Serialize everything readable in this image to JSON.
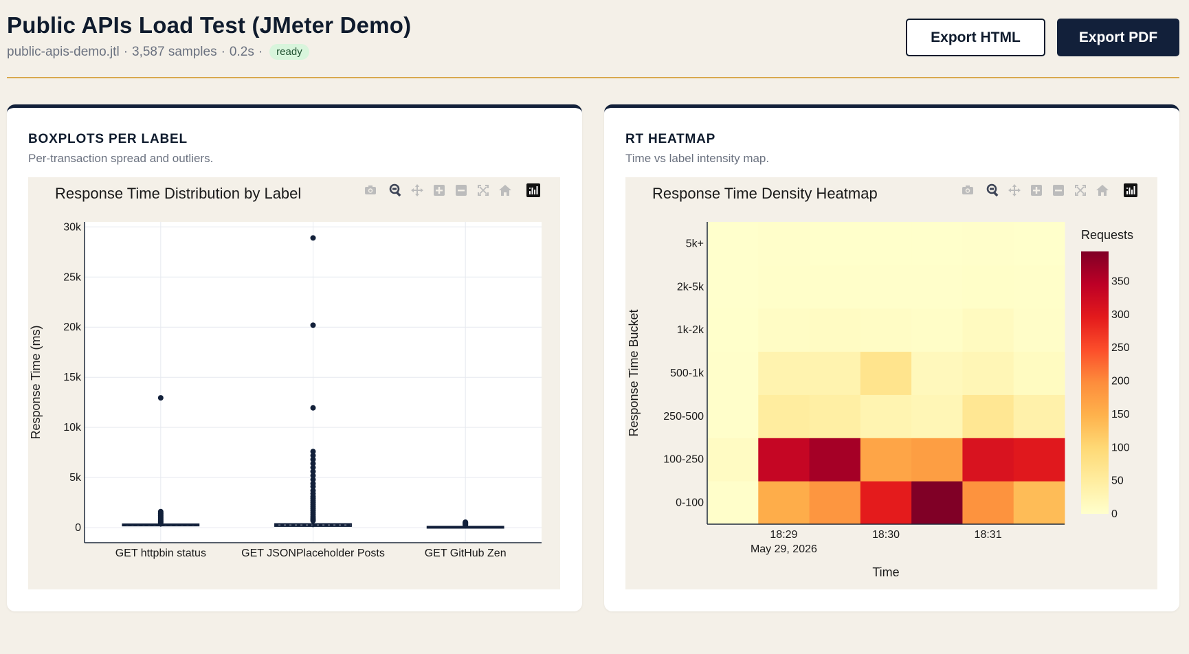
{
  "header": {
    "title": "Public APIs Load Test (JMeter Demo)",
    "file": "public-apis-demo.jtl",
    "samples": "3,587 samples",
    "duration": "0.2s",
    "separator": "·",
    "status": "ready",
    "export_html_label": "Export HTML",
    "export_pdf_label": "Export PDF"
  },
  "colors": {
    "accent": "#d9a94e",
    "navy": "#12203a",
    "status_bg": "#d8f5dc",
    "status_text": "#1f5130",
    "plot_bg": "#f4f0e8"
  },
  "modebar_icons": [
    "camera-icon",
    "zoom-icon",
    "pan-icon",
    "zoom-in-icon",
    "zoom-out-icon",
    "autoscale-icon",
    "reset-axes-icon",
    "plotly-logo-icon"
  ],
  "boxplot_card": {
    "title": "BOXPLOTS PER LABEL",
    "subtitle": "Per-transaction spread and outliers."
  },
  "heatmap_card": {
    "title": "RT HEATMAP",
    "subtitle": "Time vs label intensity map."
  },
  "chart_data": [
    {
      "type": "box",
      "title": "Response Time Distribution by Label",
      "xlabel": "",
      "ylabel": "Response Time (ms)",
      "ylim": [
        -1500,
        30500
      ],
      "yticks": [
        0,
        5000,
        10000,
        15000,
        20000,
        25000,
        30000
      ],
      "ytick_labels": [
        "0",
        "5k",
        "10k",
        "15k",
        "20k",
        "25k",
        "30k"
      ],
      "grid": true,
      "categories": [
        "GET httpbin status",
        "GET JSONPlaceholder Posts",
        "GET GitHub Zen"
      ],
      "boxes": [
        {
          "q1": 200,
          "median": 280,
          "q3": 350,
          "whisker_low": 100,
          "whisker_high": 400,
          "outliers": [
            12950,
            1600,
            1500,
            1400,
            1300,
            1200,
            1100,
            1000,
            900,
            800,
            700,
            600,
            500
          ]
        },
        {
          "q1": 150,
          "median": 250,
          "q3": 380,
          "whisker_low": 50,
          "whisker_high": 600,
          "outliers": [
            28900,
            20200,
            11950,
            7600,
            7200,
            6800,
            6400,
            6000,
            5600,
            5200,
            4800,
            4400,
            4100,
            3700,
            3400,
            3100,
            2900,
            2700,
            2500,
            2300,
            2100,
            1900,
            1700,
            1500,
            1300,
            1100,
            950,
            800,
            700
          ]
        },
        {
          "q1": 50,
          "median": 80,
          "q3": 110,
          "whisker_low": 20,
          "whisker_high": 140,
          "outliers": [
            550,
            500,
            450,
            400,
            350,
            300,
            250
          ]
        }
      ]
    },
    {
      "type": "heatmap",
      "title": "Response Time Density Heatmap",
      "xlabel": "Time",
      "ylabel": "Response Time Bucket",
      "x_tick_labels": [
        "18:29",
        "18:30",
        "18:31"
      ],
      "x_date_label": "May 29, 2026",
      "y_categories": [
        "0-100",
        "100-250",
        "250-500",
        "500-1k",
        "1k-2k",
        "2k-5k",
        "5k+"
      ],
      "colorbar_title": "Requests",
      "colorbar_ticks": [
        0,
        50,
        100,
        150,
        200,
        250,
        300,
        350
      ],
      "zmax": 395,
      "z": [
        [
          2,
          155,
          185,
          295,
          395,
          190,
          135
        ],
        [
          10,
          335,
          365,
          165,
          175,
          310,
          300
        ],
        [
          2,
          50,
          45,
          30,
          25,
          65,
          38
        ],
        [
          2,
          32,
          32,
          72,
          18,
          25,
          12
        ],
        [
          1,
          8,
          10,
          8,
          6,
          14,
          5
        ],
        [
          0,
          3,
          3,
          2,
          2,
          4,
          3
        ],
        [
          0,
          2,
          1,
          1,
          1,
          2,
          1
        ]
      ]
    }
  ]
}
